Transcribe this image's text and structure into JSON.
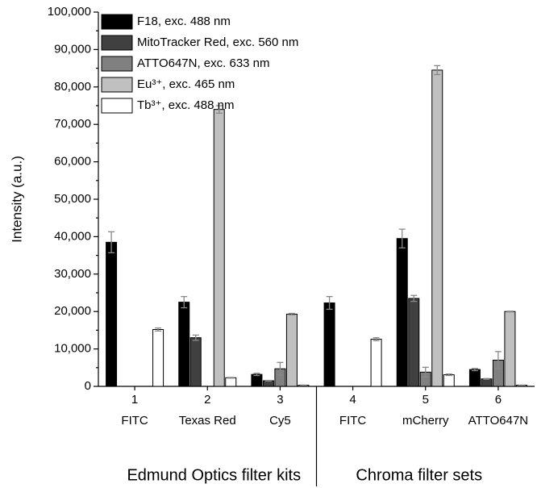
{
  "chart_data": {
    "type": "bar",
    "y_label": "Intensity (a.u.)",
    "category_ids": [
      "1",
      "2",
      "3",
      "4",
      "5",
      "6"
    ],
    "categories": [
      "FITC",
      "Texas Red",
      "Cy5",
      "FITC",
      "mCherry",
      "ATTO647N"
    ],
    "groups": [
      {
        "label": "Edmund Optics filter kits",
        "size": 3
      },
      {
        "label": "Chroma filter sets",
        "size": 3
      }
    ],
    "series": [
      {
        "name": "F18, exc. 488 nm",
        "color": "#000000",
        "values": [
          38500,
          22500,
          3200,
          22300,
          39500,
          4500
        ],
        "errors": [
          2800,
          1500,
          300,
          1700,
          2500,
          300
        ]
      },
      {
        "name": "MitoTracker Red, exc. 560 nm",
        "color": "#404040",
        "values": [
          0,
          13000,
          1500,
          0,
          23500,
          2000
        ],
        "errors": [
          0,
          700,
          100,
          0,
          800,
          100
        ]
      },
      {
        "name": "ATTO647N, exc. 633 nm",
        "color": "#808080",
        "values": [
          0,
          0,
          4700,
          0,
          3800,
          7000
        ],
        "errors": [
          0,
          0,
          1700,
          0,
          1300,
          2300
        ]
      },
      {
        "name": "Eu³⁺, exc. 465 nm",
        "color": "#c0c0c0",
        "values": [
          0,
          74000,
          19300,
          0,
          84500,
          20000
        ],
        "errors": [
          0,
          1000,
          200,
          0,
          1200,
          100
        ]
      },
      {
        "name": "Tb³⁺, exc. 488 nm",
        "color": "#ffffff",
        "values": [
          15200,
          2300,
          300,
          12600,
          3100,
          300
        ],
        "errors": [
          400,
          100,
          50,
          400,
          200,
          50
        ]
      }
    ],
    "ylim": [
      0,
      100000
    ],
    "yticks": [
      {
        "value": 0,
        "label": "0"
      },
      {
        "value": 10000,
        "label": "10,000"
      },
      {
        "value": 20000,
        "label": "20,000"
      },
      {
        "value": 30000,
        "label": "30,000"
      },
      {
        "value": 40000,
        "label": "40,000"
      },
      {
        "value": 50000,
        "label": "50,000"
      },
      {
        "value": 60000,
        "label": "60,000"
      },
      {
        "value": 70000,
        "label": "70,000"
      },
      {
        "value": 80000,
        "label": "80,000"
      },
      {
        "value": 90000,
        "label": "90,000"
      },
      {
        "value": 100000,
        "label": "100,000"
      }
    ],
    "legend": "top-left"
  }
}
